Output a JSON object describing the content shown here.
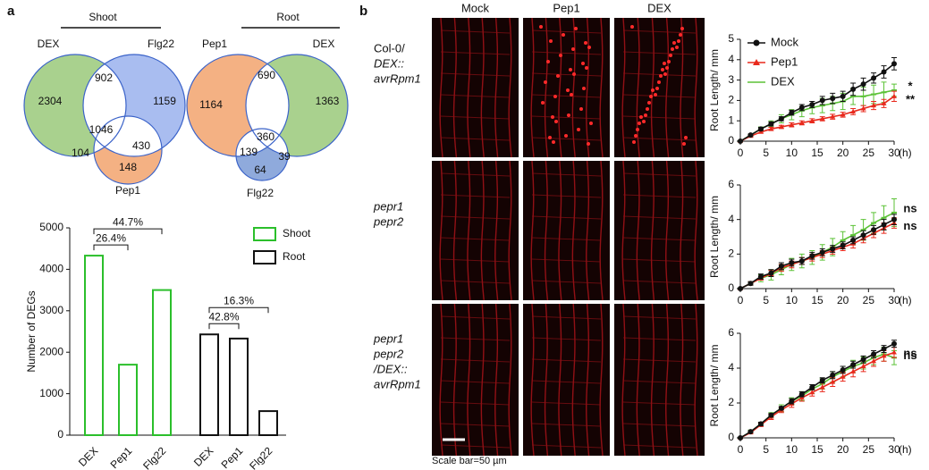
{
  "panel_labels": [
    "a",
    "b"
  ],
  "chart_data": [
    {
      "type": "venn",
      "title": "Shoot",
      "sets": [
        "DEX",
        "Flg22",
        "Pep1"
      ],
      "colors": [
        "#a9d18e",
        "#a9bdf0",
        "#f4b183"
      ],
      "values": [
        2304,
        902,
        1159,
        1046,
        430,
        104,
        148
      ]
    },
    {
      "type": "venn",
      "title": "Root",
      "sets": [
        "Pep1",
        "DEX",
        "Flg22"
      ],
      "colors": [
        "#f4b183",
        "#a9d18e",
        "#8faadc"
      ],
      "values": [
        1164,
        690,
        1363,
        360,
        39,
        139,
        64
      ]
    },
    {
      "type": "bar",
      "ylabel": "Number of DEGs",
      "categories": [
        "DEX",
        "Pep1",
        "Flg22"
      ],
      "ylim": [
        0,
        5000
      ],
      "yticks": [
        0,
        1000,
        2000,
        3000,
        4000,
        5000
      ],
      "series": [
        {
          "name": "Shoot",
          "color": "#2bbf2b",
          "values": [
            4330,
            1700,
            3500
          ],
          "annotations": [
            "26.4%",
            "44.7%"
          ]
        },
        {
          "name": "Root",
          "color": "#111111",
          "values": [
            2430,
            2330,
            580
          ],
          "annotations": [
            "42.8%",
            "16.3%"
          ]
        }
      ]
    },
    {
      "type": "line",
      "ylabel": "Root Length/ mm",
      "xlabel": "(h)",
      "legend": true,
      "x": [
        0,
        2,
        4,
        6,
        8,
        10,
        12,
        14,
        16,
        18,
        20,
        22,
        24,
        26,
        28,
        30
      ],
      "xlim": [
        0,
        30
      ],
      "xticks": [
        0,
        5,
        10,
        15,
        20,
        25,
        30
      ],
      "ylim": [
        0,
        5
      ],
      "yticks": [
        0,
        1,
        2,
        3,
        4,
        5
      ],
      "series": [
        {
          "name": "Mock",
          "color": "#111111",
          "values": [
            0,
            0.3,
            0.6,
            0.85,
            1.1,
            1.4,
            1.65,
            1.8,
            2.0,
            2.1,
            2.2,
            2.55,
            2.8,
            3.1,
            3.4,
            3.8
          ],
          "errors": [
            0,
            0.05,
            0.08,
            0.1,
            0.1,
            0.12,
            0.15,
            0.15,
            0.2,
            0.25,
            0.25,
            0.3,
            0.3,
            0.25,
            0.3,
            0.3
          ]
        },
        {
          "name": "Pep1",
          "color": "#e8291c",
          "values": [
            0,
            0.25,
            0.45,
            0.6,
            0.7,
            0.8,
            0.9,
            1.0,
            1.1,
            1.2,
            1.3,
            1.45,
            1.6,
            1.75,
            1.85,
            2.2
          ],
          "errors": [
            0,
            0.05,
            0.05,
            0.08,
            0.08,
            0.1,
            0.1,
            0.1,
            0.1,
            0.12,
            0.12,
            0.15,
            0.15,
            0.2,
            0.2,
            0.25
          ],
          "significance": "**"
        },
        {
          "name": "DEX",
          "color": "#5bc236",
          "values": [
            0,
            0.3,
            0.6,
            0.85,
            1.1,
            1.3,
            1.5,
            1.65,
            1.75,
            1.85,
            1.95,
            2.2,
            2.2,
            2.3,
            2.4,
            2.5
          ],
          "errors": [
            0,
            0.05,
            0.1,
            0.15,
            0.2,
            0.25,
            0.3,
            0.3,
            0.35,
            0.35,
            0.4,
            0.4,
            0.45,
            0.45,
            0.5,
            0.3
          ],
          "significance": "*"
        }
      ]
    },
    {
      "type": "line",
      "ylabel": "Root Length/ mm",
      "xlabel": "(h)",
      "legend": false,
      "x": [
        0,
        2,
        4,
        6,
        8,
        10,
        12,
        14,
        16,
        18,
        20,
        22,
        24,
        26,
        28,
        30
      ],
      "xlim": [
        0,
        30
      ],
      "xticks": [
        0,
        5,
        10,
        15,
        20,
        25,
        30
      ],
      "ylim": [
        0,
        6
      ],
      "yticks": [
        0,
        2,
        4,
        6
      ],
      "series": [
        {
          "name": "Mock",
          "color": "#111111",
          "values": [
            0,
            0.3,
            0.7,
            0.9,
            1.3,
            1.5,
            1.6,
            1.9,
            2.1,
            2.3,
            2.5,
            2.8,
            3.1,
            3.4,
            3.7,
            4.0
          ],
          "errors": [
            0,
            0.1,
            0.15,
            0.2,
            0.2,
            0.2,
            0.2,
            0.2,
            0.2,
            0.2,
            0.2,
            0.2,
            0.25,
            0.25,
            0.3,
            0.3
          ]
        },
        {
          "name": "Pep1",
          "color": "#e8291c",
          "values": [
            0,
            0.3,
            0.6,
            0.9,
            1.2,
            1.4,
            1.6,
            1.8,
            2.0,
            2.2,
            2.4,
            2.6,
            2.9,
            3.2,
            3.5,
            3.8
          ],
          "errors": [
            0,
            0.1,
            0.1,
            0.15,
            0.2,
            0.2,
            0.2,
            0.2,
            0.2,
            0.2,
            0.2,
            0.25,
            0.25,
            0.25,
            0.3,
            0.3
          ],
          "significance": "ns"
        },
        {
          "name": "DEX",
          "color": "#5bc236",
          "values": [
            0,
            0.3,
            0.6,
            0.8,
            1.1,
            1.4,
            1.6,
            1.8,
            2.1,
            2.4,
            2.8,
            3.1,
            3.4,
            3.8,
            4.1,
            4.4
          ],
          "errors": [
            0,
            0.1,
            0.2,
            0.3,
            0.3,
            0.35,
            0.4,
            0.4,
            0.45,
            0.5,
            0.5,
            0.55,
            0.6,
            0.6,
            0.7,
            0.8
          ],
          "significance": "ns"
        }
      ]
    },
    {
      "type": "line",
      "ylabel": "Root Length/ mm",
      "xlabel": "(h)",
      "legend": false,
      "x": [
        0,
        2,
        4,
        6,
        8,
        10,
        12,
        14,
        16,
        18,
        20,
        22,
        24,
        26,
        28,
        30
      ],
      "xlim": [
        0,
        30
      ],
      "xticks": [
        0,
        5,
        10,
        15,
        20,
        25,
        30
      ],
      "ylim": [
        0,
        6
      ],
      "yticks": [
        0,
        2,
        4,
        6
      ],
      "series": [
        {
          "name": "Mock",
          "color": "#111111",
          "values": [
            0,
            0.35,
            0.8,
            1.3,
            1.7,
            2.1,
            2.5,
            2.9,
            3.3,
            3.6,
            3.9,
            4.2,
            4.5,
            4.8,
            5.1,
            5.4
          ],
          "errors": [
            0,
            0.05,
            0.1,
            0.1,
            0.1,
            0.15,
            0.15,
            0.15,
            0.15,
            0.2,
            0.2,
            0.2,
            0.2,
            0.2,
            0.2,
            0.2
          ]
        },
        {
          "name": "Pep1",
          "color": "#e8291c",
          "values": [
            0,
            0.3,
            0.75,
            1.2,
            1.6,
            1.95,
            2.3,
            2.6,
            2.9,
            3.2,
            3.5,
            3.8,
            4.1,
            4.4,
            4.7,
            4.9
          ],
          "errors": [
            0,
            0.05,
            0.1,
            0.15,
            0.15,
            0.2,
            0.2,
            0.2,
            0.25,
            0.25,
            0.25,
            0.3,
            0.3,
            0.3,
            0.3,
            0.3
          ],
          "significance": "ns"
        },
        {
          "name": "DEX",
          "color": "#5bc236",
          "values": [
            0,
            0.35,
            0.8,
            1.3,
            1.7,
            2.1,
            2.4,
            2.8,
            3.1,
            3.5,
            3.8,
            4.1,
            4.3,
            4.6,
            4.8,
            4.6
          ],
          "errors": [
            0,
            0.1,
            0.1,
            0.15,
            0.2,
            0.2,
            0.25,
            0.25,
            0.3,
            0.3,
            0.3,
            0.35,
            0.35,
            0.4,
            0.4,
            0.4
          ],
          "significance": "ns"
        }
      ]
    }
  ],
  "micrographs": {
    "columns": [
      "Mock",
      "Pep1",
      "DEX"
    ],
    "rows": [
      [
        "Col-0/",
        "DEX::",
        "avrRpm1"
      ],
      [
        "pepr1",
        "pepr2"
      ],
      [
        "pepr1",
        "pepr2",
        "/DEX::",
        "avrRpm1"
      ]
    ],
    "scale_bar": "Scale bar=50 µm"
  }
}
